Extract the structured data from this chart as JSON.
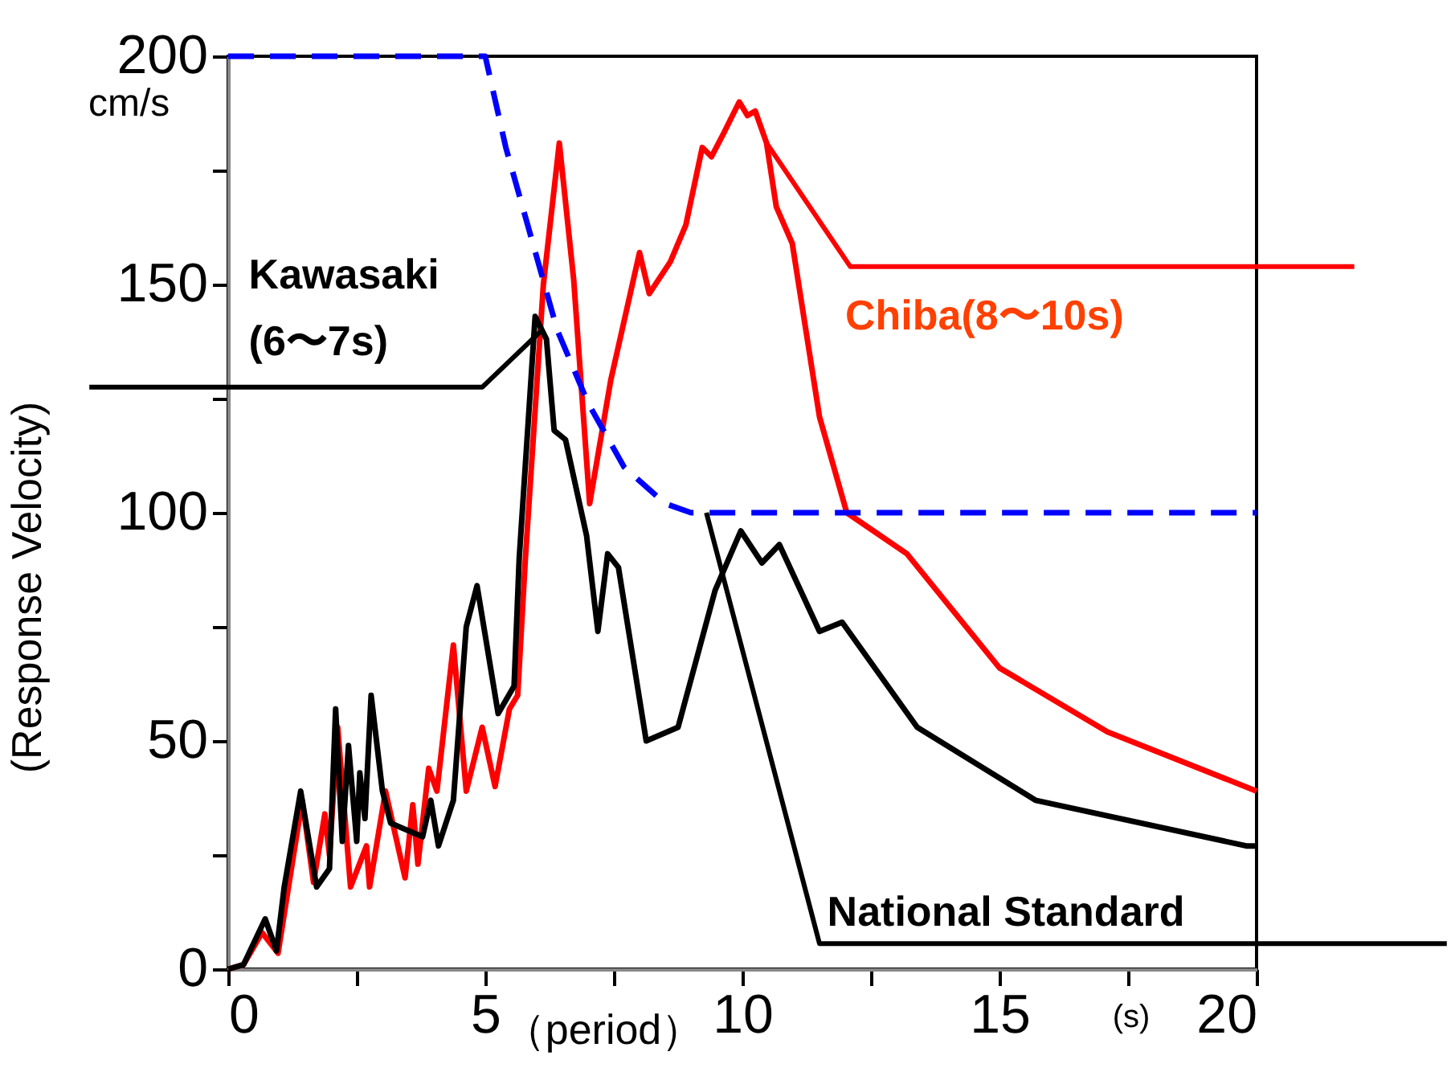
{
  "chart_data": {
    "type": "line",
    "xlabel": "（period）",
    "ylabel": "(Response Velocity)",
    "xlim": [
      0,
      20
    ],
    "ylim": [
      0,
      200
    ],
    "xticks": [
      0,
      {
        "value": 2.5,
        "label": null
      },
      5,
      {
        "value": 7.5,
        "label": null
      },
      10,
      {
        "value": 12.5,
        "label": null
      },
      15,
      {
        "value": 17.5,
        "label": null
      },
      20
    ],
    "yticks": [
      0,
      {
        "value": 25,
        "label": null
      },
      50,
      {
        "value": 75,
        "label": null
      },
      100,
      {
        "value": 125,
        "label": null
      },
      150,
      {
        "value": 175,
        "label": null
      },
      200
    ],
    "grid": false,
    "marker": "none",
    "series": [
      {
        "color": "#ff0000",
        "line_style": "solid",
        "x": [
          0,
          0.3,
          0.66,
          0.97,
          1.44,
          1.66,
          1.88,
          1.97,
          2.13,
          2.38,
          2.69,
          2.75,
          3.06,
          3.44,
          3.59,
          3.69,
          3.9,
          4.06,
          4.38,
          4.63,
          4.94,
          5.19,
          5.47,
          5.63,
          5.78,
          6.13,
          6.44,
          6.72,
          7.03,
          7.44,
          8.0,
          8.19,
          8.6,
          8.9,
          9.22,
          9.4,
          9.63,
          9.94,
          10.1,
          10.25,
          10.47,
          10.66,
          10.97,
          11.5,
          12.03,
          13.2,
          15.0,
          17.1,
          20
        ],
        "values": [
          0,
          1,
          8,
          3.5,
          37,
          19,
          34,
          25,
          53,
          18,
          27,
          18,
          39,
          20,
          36,
          23,
          44,
          39,
          71,
          39,
          53,
          40,
          57,
          60,
          90,
          150,
          181,
          151,
          102,
          129,
          157,
          148,
          155,
          163,
          180,
          178,
          183,
          190,
          187,
          188,
          181,
          167,
          159,
          121,
          100,
          91,
          66,
          52,
          39
        ]
      },
      {
        "color": "#000000",
        "line_style": "solid",
        "x": [
          0,
          0.3,
          0.72,
          0.94,
          1.09,
          1.41,
          1.72,
          1.97,
          2.09,
          2.22,
          2.34,
          2.5,
          2.56,
          2.66,
          2.78,
          3.0,
          3.16,
          3.78,
          3.94,
          4.09,
          4.38,
          4.63,
          4.84,
          5.25,
          5.56,
          5.66,
          5.97,
          6.19,
          6.34,
          6.56,
          6.97,
          7.19,
          7.38,
          7.59,
          8.13,
          8.75,
          9.47,
          9.97,
          10.38,
          10.72,
          11.5,
          11.94,
          13.4,
          15.7,
          19.8,
          20
        ],
        "values": [
          0,
          1,
          11,
          4,
          18,
          39,
          18,
          22,
          57,
          28,
          49,
          28,
          43,
          33,
          60,
          39,
          32,
          29,
          37,
          27,
          37,
          75,
          84,
          56,
          62,
          90,
          143,
          138,
          118,
          116,
          95,
          74,
          91,
          88,
          50,
          53,
          83,
          96,
          89,
          93,
          74,
          76,
          53,
          37,
          27,
          27
        ]
      },
      {
        "color": "#0000ff",
        "line_style": "dashed",
        "x": [
          0,
          5,
          5.4,
          5.9,
          6.4,
          7.0,
          7.7,
          8.5,
          9,
          20
        ],
        "values": [
          200,
          200,
          180,
          160,
          140,
          124,
          110,
          102,
          100,
          100
        ]
      }
    ],
    "annotations": [
      {
        "text": "Kawasaki (6〜7s)",
        "x": 6.1,
        "y": 140
      },
      {
        "text": "Chiba(8〜10s)",
        "x": 10.47,
        "y": 181
      },
      {
        "text": "National Standard",
        "x": 9.3,
        "y": 100
      },
      "cm/s",
      "(s)"
    ]
  }
}
